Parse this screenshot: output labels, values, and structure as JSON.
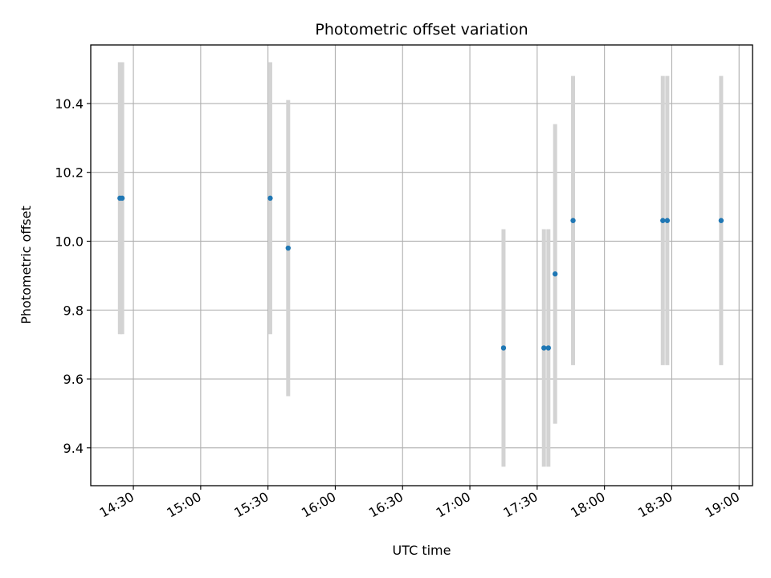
{
  "chart_data": {
    "type": "scatter",
    "title": "Photometric offset variation",
    "xlabel": "UTC time",
    "ylabel": "Photometric offset",
    "x_axis_kind": "time",
    "xlim": [
      "14:11",
      "19:06"
    ],
    "ylim": [
      9.29,
      10.57
    ],
    "x_ticks": [
      "14:30",
      "15:00",
      "15:30",
      "16:00",
      "16:30",
      "17:00",
      "17:30",
      "18:00",
      "18:30",
      "19:00"
    ],
    "y_ticks": [
      9.4,
      9.6,
      9.8,
      10.0,
      10.2,
      10.4
    ],
    "y_tick_labels": [
      "9.4",
      "9.6",
      "9.8",
      "10.0",
      "10.2",
      "10.4"
    ],
    "grid": true,
    "colors": {
      "point": "#1f77b4",
      "errorbar": "#d3d3d3",
      "grid": "#b0b0b0"
    },
    "points": [
      {
        "x": "14:24",
        "y": 10.125,
        "yerr": 0.395
      },
      {
        "x": "14:25",
        "y": 10.125,
        "yerr": 0.395
      },
      {
        "x": "15:31",
        "y": 10.125,
        "yerr": 0.395
      },
      {
        "x": "15:39",
        "y": 9.98,
        "yerr": 0.43
      },
      {
        "x": "17:15",
        "y": 9.69,
        "yerr": 0.345
      },
      {
        "x": "17:33",
        "y": 9.69,
        "yerr": 0.345
      },
      {
        "x": "17:35",
        "y": 9.69,
        "yerr": 0.345
      },
      {
        "x": "17:38",
        "y": 9.905,
        "yerr": 0.435
      },
      {
        "x": "17:46",
        "y": 10.06,
        "yerr": 0.42
      },
      {
        "x": "18:26",
        "y": 10.06,
        "yerr": 0.42
      },
      {
        "x": "18:28",
        "y": 10.06,
        "yerr": 0.42
      },
      {
        "x": "18:52",
        "y": 10.06,
        "yerr": 0.42
      }
    ]
  }
}
